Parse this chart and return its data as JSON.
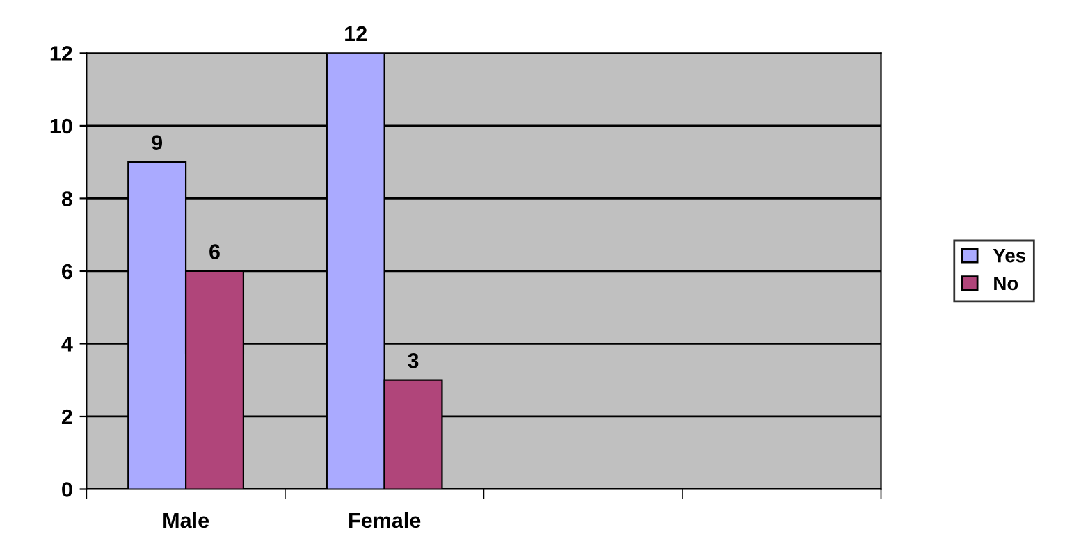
{
  "chart_data": {
    "type": "bar",
    "categories": [
      "Male",
      "Female",
      null,
      null
    ],
    "series": [
      {
        "name": "Yes",
        "color": "#aaaaff",
        "values": [
          9,
          12,
          null,
          null
        ]
      },
      {
        "name": "No",
        "color": "#b0457a",
        "values": [
          6,
          3,
          null,
          null
        ]
      }
    ],
    "ylim": [
      0,
      12
    ],
    "yticks": [
      0,
      2,
      4,
      6,
      8,
      10,
      12
    ],
    "grid": "y",
    "legend": "right",
    "data_labels": true
  }
}
